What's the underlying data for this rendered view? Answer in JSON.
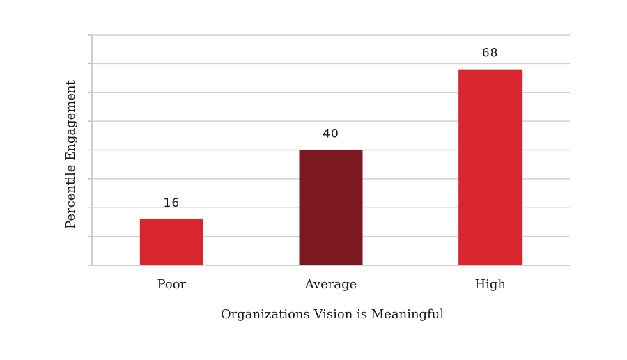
{
  "chart_data": {
    "type": "bar",
    "categories": [
      "Poor",
      "Average",
      "High"
    ],
    "values": [
      16,
      40,
      68
    ],
    "data_labels": [
      "16",
      "40",
      "68"
    ],
    "bar_colors": [
      "#d9252e",
      "#7b1820",
      "#d9252e"
    ],
    "title": "",
    "xlabel": "Organizations Vision is Meaningful",
    "ylabel": "Percentile Engagement",
    "ylim": [
      0,
      80
    ],
    "ytick_step": 10,
    "ytick_labels_shown": false,
    "grid": true,
    "legend": "none"
  },
  "colors": {
    "bar_primary": "#d9252e",
    "bar_highlight": "#7b1820",
    "gridline": "#d0d0d0",
    "text": "#1a1a1a"
  }
}
